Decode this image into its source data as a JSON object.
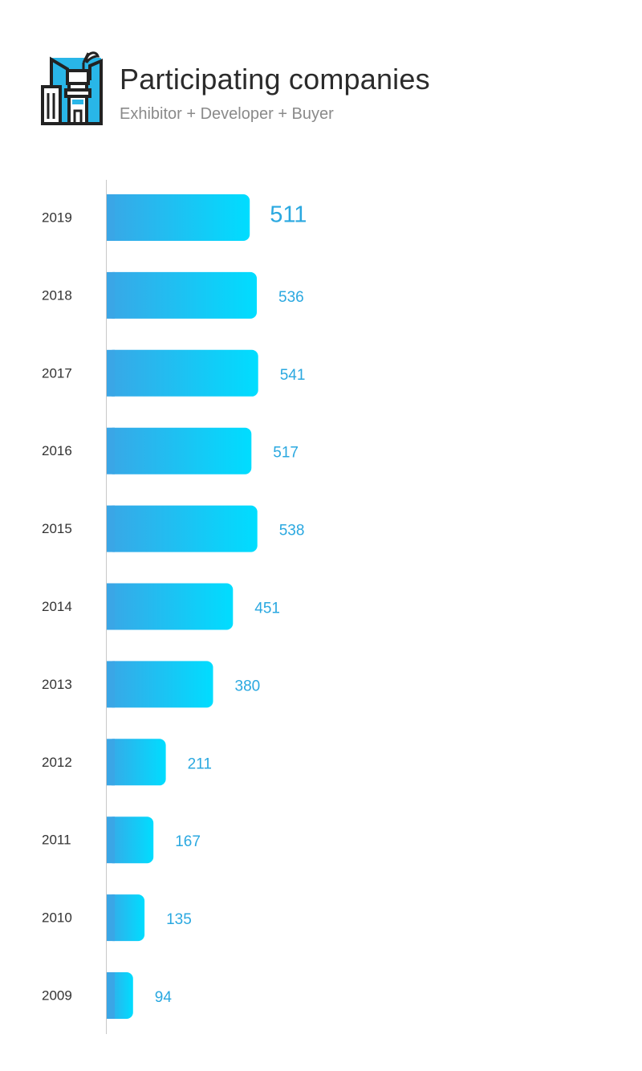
{
  "header": {
    "title": "Participating companies",
    "subtitle": "Exhibitor + Developer + Buyer",
    "icon": "city-buildings-icon"
  },
  "colors": {
    "bar_start": "#3aa6e6",
    "bar_end": "#00ddff",
    "value_text": "#2aa8e0",
    "axis": "#c8c8c8",
    "icon_fill": "#29b6e8",
    "icon_stroke": "#222222"
  },
  "chart_data": {
    "type": "bar",
    "orientation": "horizontal",
    "title": "Participating companies",
    "subtitle": "Exhibitor + Developer + Buyer",
    "xlabel": "",
    "ylabel": "",
    "categories": [
      "2019",
      "2018",
      "2017",
      "2016",
      "2015",
      "2014",
      "2013",
      "2012",
      "2011",
      "2010",
      "2009"
    ],
    "values": [
      511,
      536,
      541,
      517,
      538,
      451,
      380,
      211,
      167,
      135,
      94
    ],
    "highlight_category": "2019",
    "xlim": [
      0,
      1000
    ],
    "grid": false,
    "legend": "none"
  }
}
